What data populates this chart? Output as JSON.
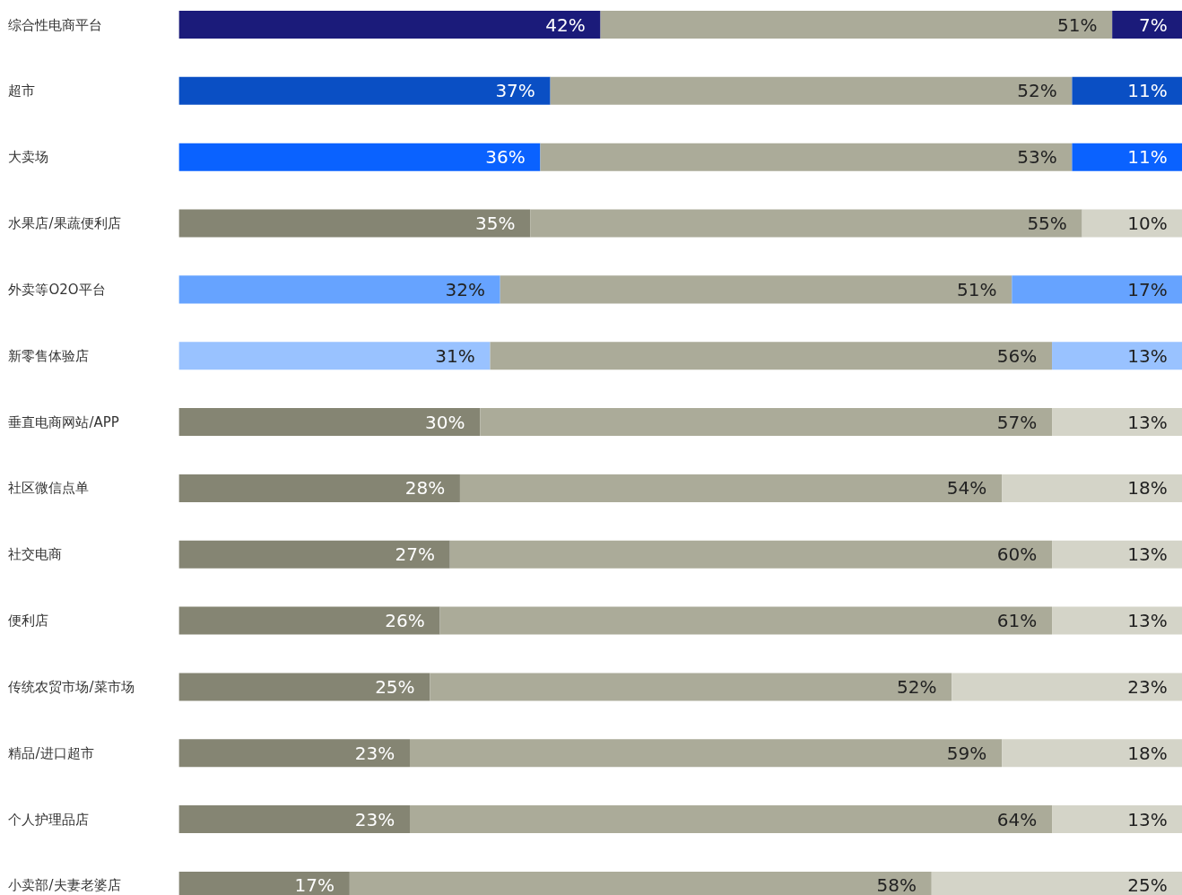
{
  "chart_data": {
    "type": "bar",
    "orientation": "horizontal",
    "stacked": true,
    "xlim": [
      0,
      100
    ],
    "tick_labels": "y",
    "categories": [
      "综合性电商平台",
      "超市",
      "大卖场",
      "水果店/果蔬便利店",
      "外卖等O2O平台",
      "新零售体验店",
      "垂直电商网站/APP",
      "社区微信点单",
      "社交电商",
      "便利店",
      "传统农贸市场/菜市场",
      "精品/进口超市",
      "个人护理品店",
      "小卖部/夫妻老婆店"
    ],
    "series": [
      {
        "values": [
          42,
          37,
          36,
          35,
          32,
          31,
          30,
          28,
          27,
          26,
          25,
          23,
          23,
          17
        ],
        "value_labels": [
          "42%",
          "37%",
          "36%",
          "35%",
          "32%",
          "31%",
          "30%",
          "28%",
          "27%",
          "26%",
          "25%",
          "23%",
          "23%",
          "17%"
        ],
        "colors": [
          "#1b1b7a",
          "#0a4fc4",
          "#0a62ff",
          "#858573",
          "#66a3ff",
          "#99c2ff",
          "#858573",
          "#858573",
          "#858573",
          "#858573",
          "#858573",
          "#858573",
          "#858573",
          "#858573"
        ]
      },
      {
        "values": [
          51,
          52,
          53,
          55,
          51,
          56,
          57,
          54,
          60,
          61,
          52,
          59,
          64,
          58
        ],
        "value_labels": [
          "51%",
          "52%",
          "53%",
          "55%",
          "51%",
          "56%",
          "57%",
          "54%",
          "60%",
          "61%",
          "52%",
          "59%",
          "64%",
          "58%"
        ],
        "color": "#abab99"
      },
      {
        "values": [
          7,
          11,
          11,
          10,
          17,
          13,
          13,
          18,
          13,
          13,
          23,
          18,
          13,
          25
        ],
        "value_labels": [
          "7%",
          "11%",
          "11%",
          "10%",
          "17%",
          "13%",
          "13%",
          "18%",
          "13%",
          "13%",
          "23%",
          "18%",
          "13%",
          "25%"
        ],
        "colors": [
          "#1b1b7a",
          "#0a4fc4",
          "#0a62ff",
          "#d4d4c8",
          "#66a3ff",
          "#99c2ff",
          "#d4d4c8",
          "#d4d4c8",
          "#d4d4c8",
          "#d4d4c8",
          "#d4d4c8",
          "#d4d4c8",
          "#d4d4c8",
          "#d4d4c8"
        ]
      }
    ]
  }
}
